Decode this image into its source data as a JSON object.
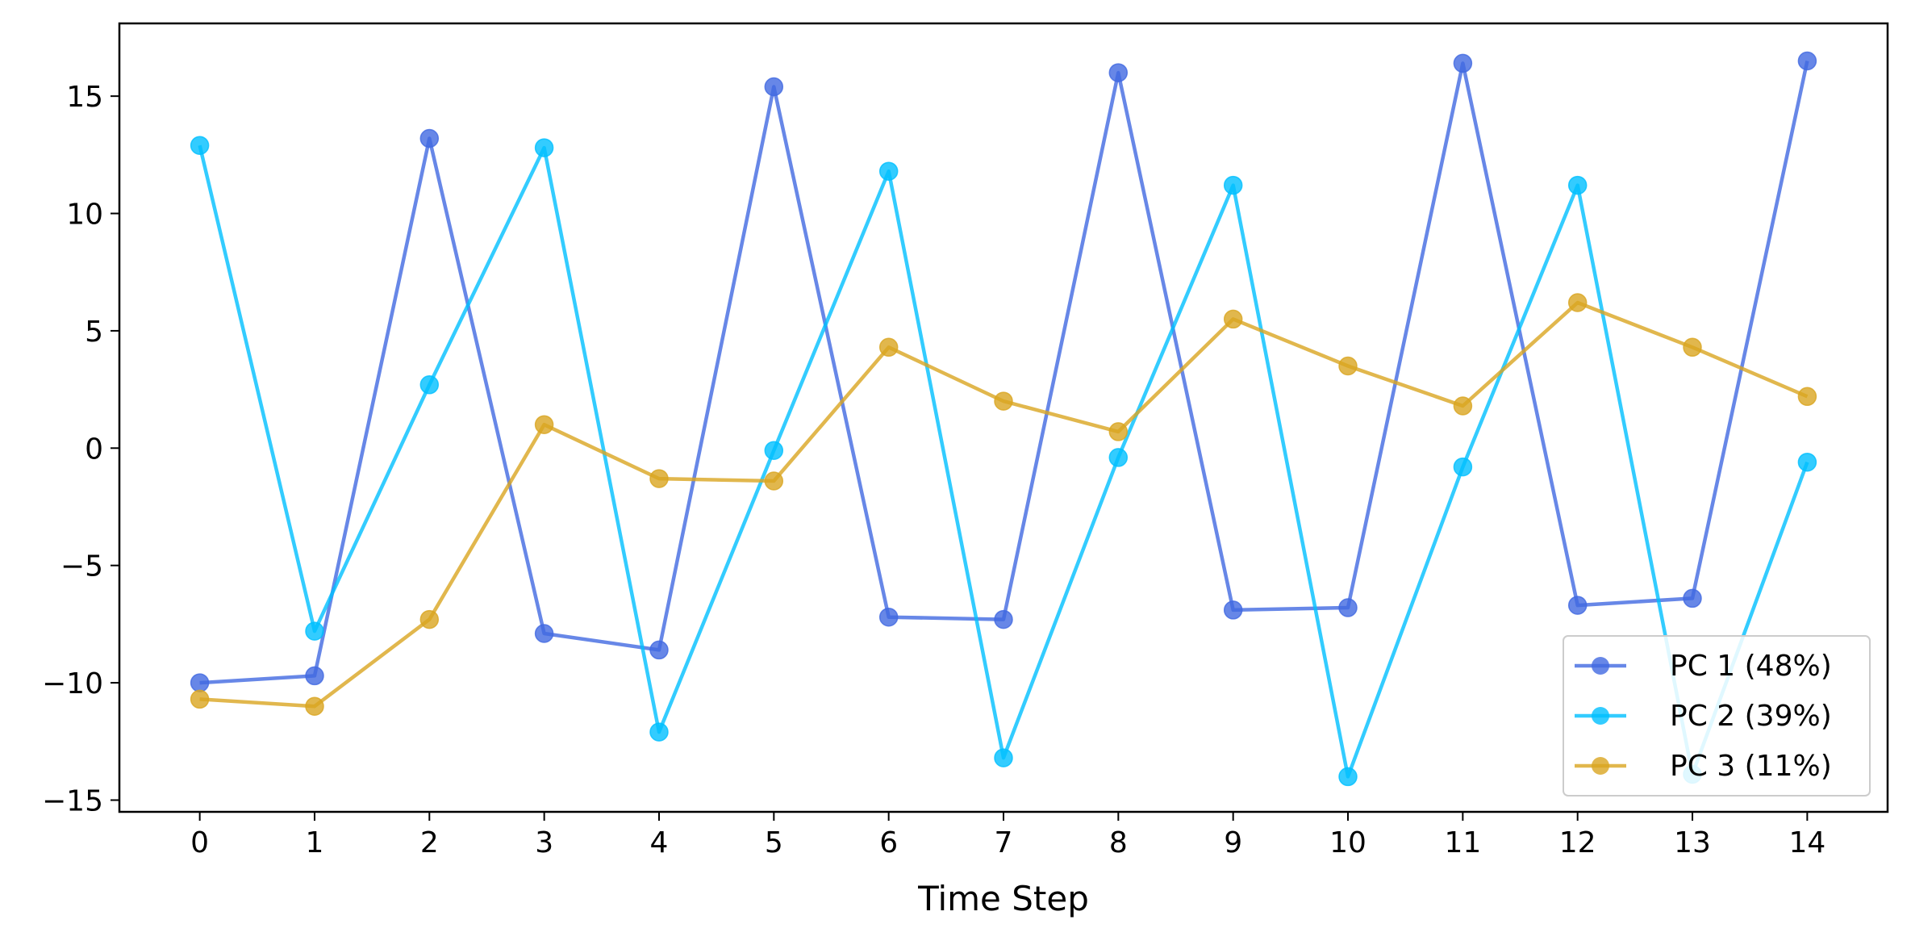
{
  "chart_data": {
    "type": "line",
    "title": "",
    "xlabel": "Time Step",
    "ylabel": "",
    "x": [
      0,
      1,
      2,
      3,
      4,
      5,
      6,
      7,
      8,
      9,
      10,
      11,
      12,
      13,
      14
    ],
    "xlim": [
      -0.7,
      14.7
    ],
    "ylim": [
      -15.5,
      18.1
    ],
    "xticks": [
      0,
      1,
      2,
      3,
      4,
      5,
      6,
      7,
      8,
      9,
      10,
      11,
      12,
      13,
      14
    ],
    "xtick_labels": [
      "0",
      "1",
      "2",
      "3",
      "4",
      "5",
      "6",
      "7",
      "8",
      "9",
      "10",
      "11",
      "12",
      "13",
      "14"
    ],
    "yticks": [
      -15,
      -10,
      -5,
      0,
      5,
      10,
      15
    ],
    "ytick_labels": [
      "−15",
      "−10",
      "−5",
      "0",
      "5",
      "10",
      "15"
    ],
    "grid": false,
    "legend_position": "bottom-right",
    "series": [
      {
        "name": "PC 1 (48%)",
        "color": "#4169e1",
        "values": [
          -10.0,
          -9.7,
          13.2,
          -7.9,
          -8.6,
          15.4,
          -7.2,
          -7.3,
          16.0,
          -6.9,
          -6.8,
          16.4,
          -6.7,
          -6.4,
          16.5
        ]
      },
      {
        "name": "PC 2 (39%)",
        "color": "#00bfff",
        "values": [
          12.9,
          -7.8,
          2.7,
          12.8,
          -12.1,
          -0.1,
          11.8,
          -13.2,
          -0.4,
          11.2,
          -14.0,
          -0.8,
          11.2,
          -13.9,
          -0.6
        ]
      },
      {
        "name": "PC 3 (11%)",
        "color": "#daa520",
        "values": [
          -10.7,
          -11.0,
          -7.3,
          1.0,
          -1.3,
          -1.4,
          4.3,
          2.0,
          0.7,
          5.5,
          3.5,
          1.8,
          6.2,
          4.3,
          2.2
        ]
      }
    ]
  }
}
